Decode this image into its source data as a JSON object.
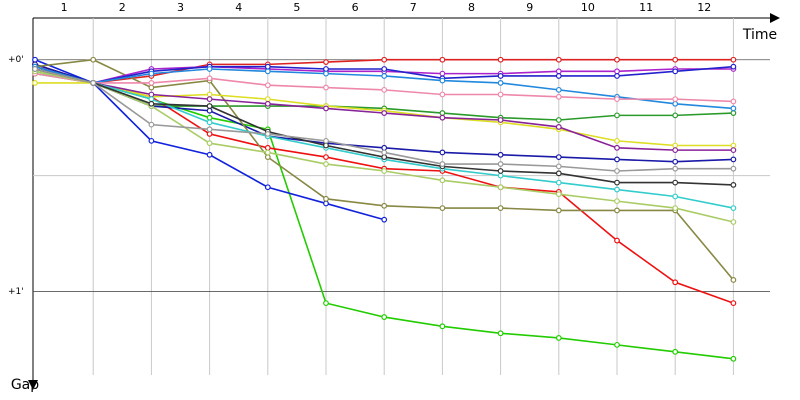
{
  "chart_data": {
    "type": "line",
    "x_axis_label": "Time",
    "y_axis_label": "Gap",
    "categories": [
      "1",
      "2",
      "3",
      "4",
      "5",
      "6",
      "7",
      "8",
      "9",
      "10",
      "11",
      "12"
    ],
    "x": [
      0,
      1,
      2,
      3,
      4,
      5,
      6,
      7,
      8,
      9,
      10,
      11,
      12
    ],
    "xlim": [
      0,
      12.9
    ],
    "ylim": [
      -0.18,
      1.36
    ],
    "yticks": [
      {
        "value": 0,
        "label": "+0'"
      },
      {
        "value": 1,
        "label": "+1'"
      }
    ],
    "minor_grid": [
      0.5
    ],
    "grid": true,
    "series": [
      {
        "color": "#22cc00",
        "values": [
          0.05,
          0.1,
          0.17,
          0.25,
          0.3,
          1.05,
          1.11,
          1.15,
          1.18,
          1.2,
          1.23,
          1.26,
          1.29
        ]
      },
      {
        "color": "#2a9a2a",
        "values": [
          0.06,
          0.1,
          0.2,
          0.2,
          0.2,
          0.2,
          0.21,
          0.23,
          0.25,
          0.26,
          0.24,
          0.24,
          0.23
        ]
      },
      {
        "color": "#ee1111",
        "values": [
          0.02,
          0.1,
          0.16,
          0.32,
          0.38,
          0.42,
          0.47,
          0.48,
          0.55,
          0.57,
          0.78,
          0.96,
          1.05
        ]
      },
      {
        "color": "#dd2222",
        "values": [
          0.03,
          0.1,
          0.07,
          0.02,
          0.02,
          0.01,
          0,
          0,
          0,
          0,
          0,
          0,
          0
        ]
      },
      {
        "color": "#1122dd",
        "values": [
          0.0,
          0.1,
          0.35,
          0.41,
          0.55,
          0.62,
          0.69,
          null,
          null,
          null,
          null,
          null,
          null
        ]
      },
      {
        "color": "#1a1aa8",
        "values": [
          0.02,
          0.1,
          0.2,
          0.22,
          0.33,
          0.36,
          0.38,
          0.4,
          0.41,
          0.42,
          0.43,
          0.44,
          0.43
        ]
      },
      {
        "color": "#888844",
        "values": [
          0.03,
          0,
          0.12,
          0.09,
          0.42,
          0.6,
          0.63,
          0.64,
          0.64,
          0.65,
          0.65,
          0.65,
          0.95
        ]
      },
      {
        "color": "#aa22cc",
        "values": [
          0.04,
          0.1,
          0.04,
          0.03,
          0.04,
          0.05,
          0.05,
          0.06,
          0.06,
          0.05,
          0.05,
          0.04,
          0.04
        ]
      },
      {
        "color": "#2222cc",
        "values": [
          0.04,
          0.1,
          0.05,
          0.03,
          0.03,
          0.04,
          0.04,
          0.08,
          0.07,
          0.07,
          0.07,
          0.05,
          0.03
        ]
      },
      {
        "color": "#2288dd",
        "values": [
          0.03,
          0.1,
          0.06,
          0.04,
          0.05,
          0.06,
          0.07,
          0.09,
          0.1,
          0.13,
          0.16,
          0.19,
          0.21
        ]
      },
      {
        "color": "#ee88aa",
        "values": [
          0.06,
          0.1,
          0.1,
          0.08,
          0.11,
          0.12,
          0.13,
          0.15,
          0.15,
          0.16,
          0.17,
          0.17,
          0.18
        ]
      },
      {
        "color": "#dddd22",
        "values": [
          0.1,
          0.1,
          0.16,
          0.15,
          0.17,
          0.2,
          0.22,
          0.25,
          0.27,
          0.3,
          0.35,
          0.37,
          0.37
        ]
      },
      {
        "color": "#882299",
        "values": [
          0.04,
          0.1,
          0.15,
          0.17,
          0.19,
          0.21,
          0.23,
          0.25,
          0.26,
          0.29,
          0.38,
          0.39,
          0.39
        ]
      },
      {
        "color": "#33cccc",
        "values": [
          0.04,
          0.1,
          0.17,
          0.27,
          0.33,
          0.38,
          0.43,
          0.47,
          0.5,
          0.53,
          0.56,
          0.59,
          0.64
        ]
      },
      {
        "color": "#aacc66",
        "values": [
          0.05,
          0.1,
          0.2,
          0.36,
          0.4,
          0.45,
          0.48,
          0.52,
          0.55,
          0.58,
          0.61,
          0.64,
          0.7
        ]
      },
      {
        "color": "#333333",
        "values": [
          0.04,
          0.1,
          0.19,
          0.2,
          0.31,
          0.37,
          0.42,
          0.46,
          0.48,
          0.49,
          0.53,
          0.53,
          0.54
        ]
      },
      {
        "color": "#999999",
        "values": [
          0.04,
          0.1,
          0.28,
          0.3,
          0.32,
          0.35,
          0.4,
          0.45,
          0.45,
          0.46,
          0.48,
          0.47,
          0.47
        ]
      }
    ]
  }
}
